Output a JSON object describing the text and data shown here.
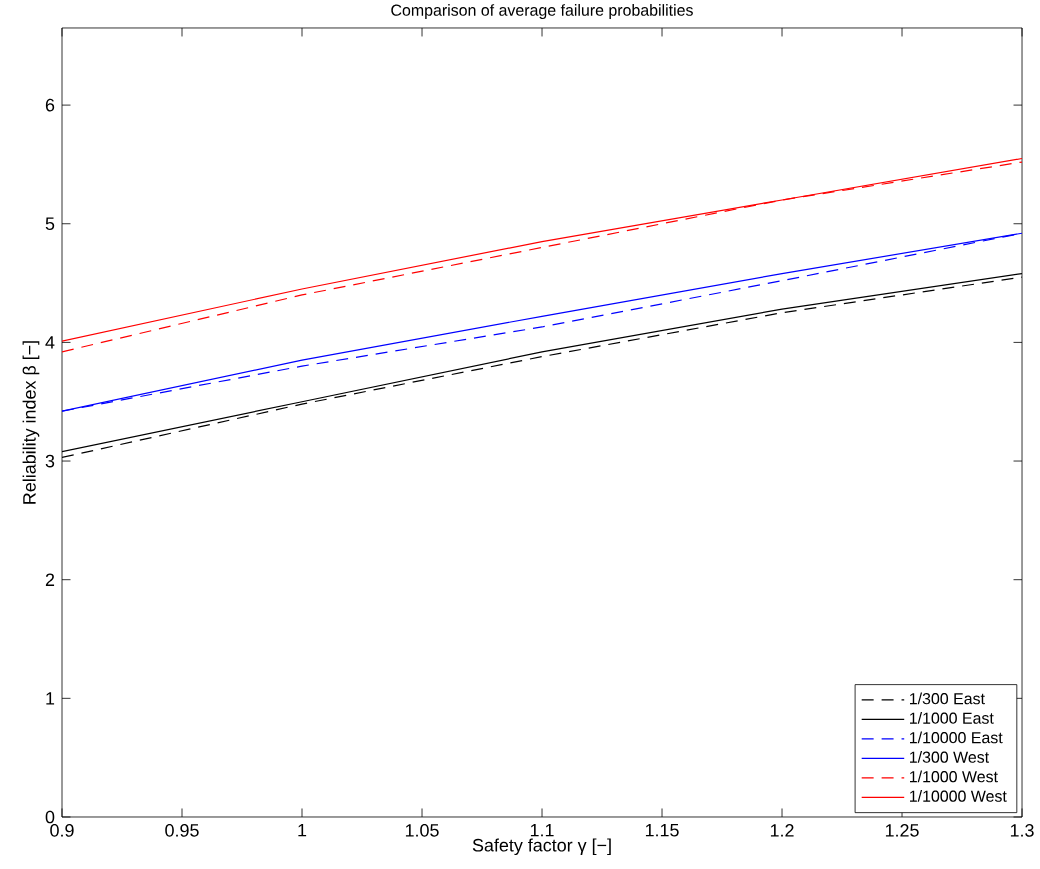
{
  "chart_data": {
    "type": "line",
    "title": "Comparison of average failure probabilities",
    "xlabel": "Safety factor γ [−]",
    "ylabel": "Reliability index  β [−]",
    "x": [
      0.9,
      1.0,
      1.1,
      1.2,
      1.3
    ],
    "series": [
      {
        "name": "1/300 East",
        "color": "#000000",
        "line_style": "dashed",
        "values": [
          3.03,
          3.48,
          3.88,
          4.25,
          4.55
        ]
      },
      {
        "name": "1/1000 East",
        "color": "#000000",
        "line_style": "solid",
        "values": [
          3.08,
          3.5,
          3.92,
          4.28,
          4.58
        ]
      },
      {
        "name": "1/10000 East",
        "color": "#0000ff",
        "line_style": "dashed",
        "values": [
          3.42,
          3.8,
          4.13,
          4.52,
          4.92
        ]
      },
      {
        "name": "1/300 West",
        "color": "#0000ff",
        "line_style": "solid",
        "values": [
          3.42,
          3.85,
          4.22,
          4.58,
          4.92
        ]
      },
      {
        "name": "1/1000 West",
        "color": "#ff0000",
        "line_style": "dashed",
        "values": [
          3.92,
          4.4,
          4.8,
          5.2,
          5.52
        ]
      },
      {
        "name": "1/10000 West",
        "color": "#ff0000",
        "line_style": "solid",
        "values": [
          4.01,
          4.45,
          4.85,
          5.2,
          5.55
        ]
      }
    ],
    "xlim": [
      0.9,
      1.3
    ],
    "ylim": [
      0,
      6.65
    ],
    "xticks": [
      {
        "value": 0.9,
        "label": "0.9"
      },
      0.95,
      {
        "value": 1.0,
        "label": "1"
      },
      1.05,
      1.1,
      1.15,
      1.2,
      1.25,
      1.3
    ],
    "yticks": [
      0,
      1,
      2,
      3,
      4,
      5,
      6
    ],
    "grid": false,
    "legend": "bottom right"
  }
}
